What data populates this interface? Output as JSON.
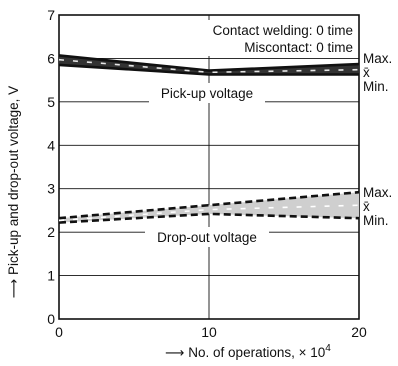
{
  "chart_data": {
    "type": "line",
    "xlabel": "No. of operations, × 10",
    "xlabel_exponent": "4",
    "ylabel": "Pick-up and drop-out voltage, V",
    "xlim": [
      0,
      20
    ],
    "ylim": [
      0,
      7
    ],
    "x_ticks": [
      "0",
      "10",
      "20"
    ],
    "y_ticks": [
      "0",
      "1",
      "2",
      "3",
      "4",
      "5",
      "6",
      "7"
    ],
    "grid": true,
    "annotations": [
      "Contact welding: 0 time",
      "Miscontact: 0 time"
    ],
    "series": [
      {
        "name": "Pick-up voltage",
        "style": "solid",
        "x": [
          0,
          10,
          20
        ],
        "max": [
          6.07,
          5.72,
          5.87
        ],
        "mean": [
          5.97,
          5.68,
          5.74
        ],
        "min": [
          5.85,
          5.63,
          5.63
        ]
      },
      {
        "name": "Drop-out voltage",
        "style": "dashed",
        "x": [
          0,
          10,
          20
        ],
        "max": [
          2.32,
          2.62,
          2.92
        ],
        "mean": [
          2.27,
          2.52,
          2.62
        ],
        "min": [
          2.22,
          2.42,
          2.32
        ]
      }
    ],
    "stat_labels": [
      "Max.",
      "x̄",
      "Min."
    ],
    "colors": {
      "line": "#111111",
      "band": "#cfcfcf",
      "grid": "#111111"
    }
  }
}
